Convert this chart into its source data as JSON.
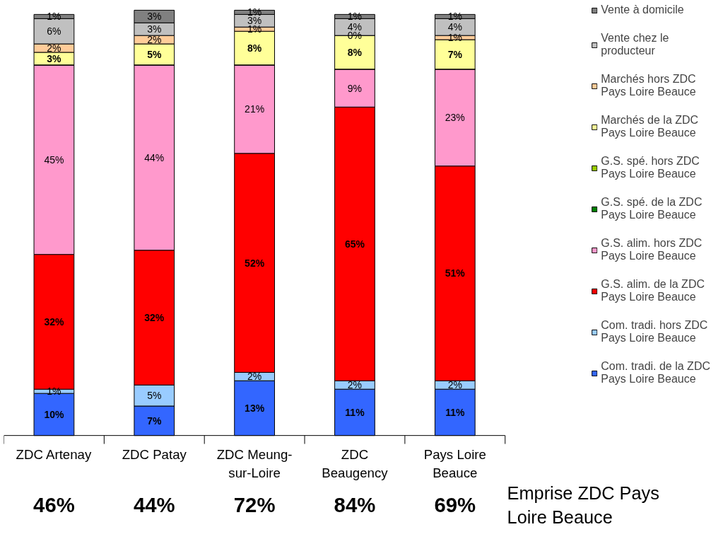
{
  "chart_data": {
    "type": "bar",
    "stacked": true,
    "legend": "right",
    "grid": false,
    "categories": [
      "ZDC Artenay",
      "ZDC Patay",
      "ZDC Meung-\nsur-Loire",
      "ZDC\nBeaugency",
      "Pays Loire\nBeauce"
    ],
    "series": [
      {
        "name": "Com. tradi. de la ZDC\nPays Loire Beauce",
        "color": "#3366ff",
        "values": [
          10,
          7,
          13,
          11,
          11
        ],
        "value_labels": [
          "10%",
          "7%",
          "13%",
          "11%",
          "11%"
        ]
      },
      {
        "name": "Com. tradi. hors ZDC\nPays Loire Beauce",
        "color": "#99ccff",
        "values": [
          1,
          5,
          2,
          2,
          2
        ],
        "value_labels": [
          "1%",
          "5%",
          "2%",
          "2%",
          "2%"
        ]
      },
      {
        "name": "G.S. alim. de la ZDC\nPays Loire Beauce",
        "color": "#ff0000",
        "values": [
          32,
          32,
          52,
          65,
          51
        ],
        "value_labels": [
          "32%",
          "32%",
          "52%",
          "65%",
          "51%"
        ]
      },
      {
        "name": "G.S. alim. hors ZDC\nPays Loire Beauce",
        "color": "#ff99cc",
        "values": [
          45,
          44,
          21,
          9,
          23
        ],
        "value_labels": [
          "45%",
          "44%",
          "21%",
          "9%",
          "23%"
        ]
      },
      {
        "name": "G.S. spé. de la ZDC\nPays Loire Beauce",
        "color": "#008000",
        "values": [
          0,
          0,
          0,
          0,
          0
        ],
        "value_labels": [
          null,
          null,
          null,
          null,
          null
        ]
      },
      {
        "name": "G.S. spé. hors ZDC\nPays Loire Beauce",
        "color": "#99cc00",
        "values": [
          0,
          0,
          0,
          0,
          0
        ],
        "value_labels": [
          null,
          null,
          null,
          null,
          null
        ]
      },
      {
        "name": "Marchés de la ZDC\nPays Loire Beauce",
        "color": "#ffff99",
        "values": [
          3,
          5,
          8,
          8,
          7
        ],
        "value_labels": [
          "3%",
          "5%",
          "8%",
          "8%",
          "7%"
        ]
      },
      {
        "name": "Marchés hors ZDC\nPays Loire Beauce",
        "color": "#ffcc99",
        "values": [
          2,
          2,
          1,
          0,
          1
        ],
        "value_labels": [
          "2%",
          "2%",
          "1%",
          "0%",
          "1%"
        ]
      },
      {
        "name": "Vente chez le\nproducteur",
        "color": "#c0c0c0",
        "values": [
          6,
          3,
          3,
          4,
          4
        ],
        "value_labels": [
          "6%",
          "3%",
          "3%",
          "4%",
          "4%"
        ]
      },
      {
        "name": "Vente à domicile",
        "color": "#808080",
        "values": [
          1,
          3,
          1,
          1,
          1
        ],
        "value_labels": [
          "1%",
          "3%",
          "1%",
          "1%",
          "1%"
        ]
      }
    ],
    "annotations": [
      "46%",
      "44%",
      "72%",
      "84%",
      "69%",
      "Emprise ZDC Pays\nLoire Beauce"
    ]
  }
}
